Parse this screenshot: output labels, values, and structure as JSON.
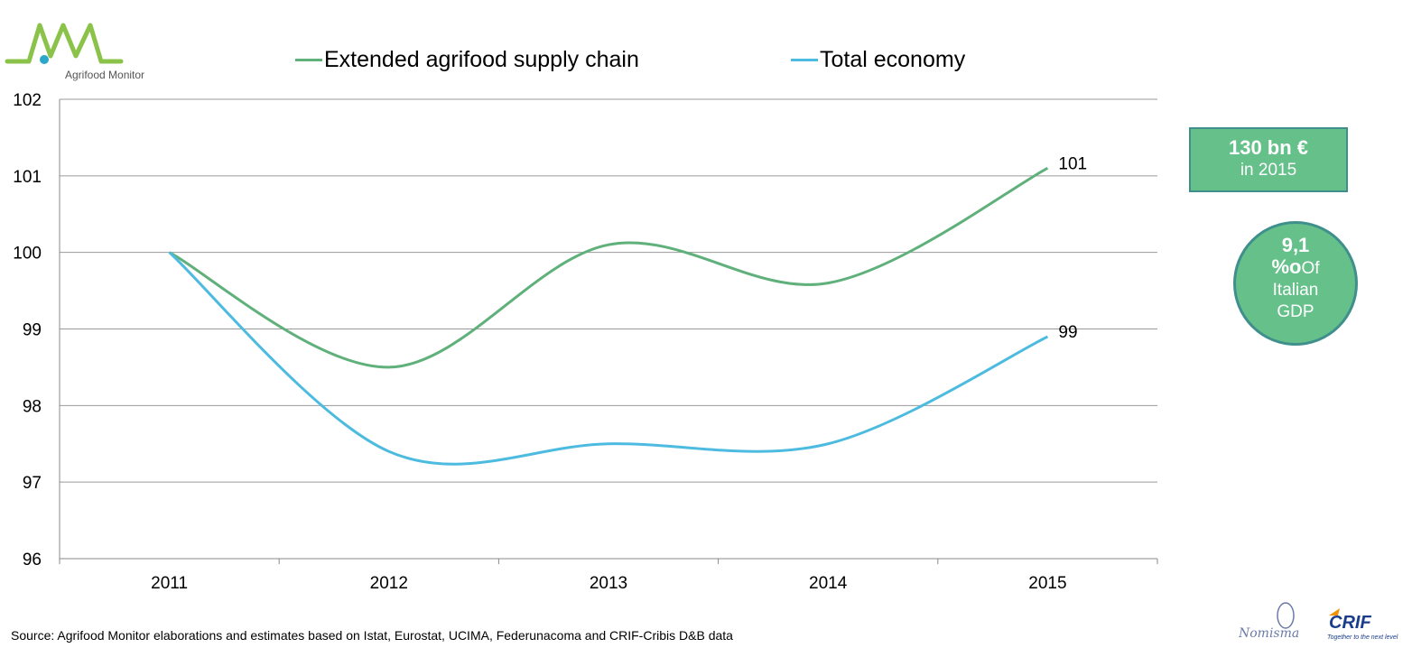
{
  "brand": {
    "name": "Agrifood Monitor"
  },
  "chart_data": {
    "type": "line",
    "categories": [
      "2011",
      "2012",
      "2013",
      "2014",
      "2015"
    ],
    "series": [
      {
        "name": "Extended agrifood supply chain",
        "values": [
          100,
          98.5,
          100.1,
          99.6,
          101.1
        ],
        "end_label": "101",
        "color": "#5fb07a"
      },
      {
        "name": "Total economy",
        "values": [
          100,
          97.4,
          97.5,
          97.5,
          98.9
        ],
        "end_label": "99",
        "color": "#4dbbe0"
      }
    ],
    "ylim": [
      96,
      102
    ],
    "yticks": [
      96,
      97,
      98,
      99,
      100,
      101,
      102
    ],
    "grid": true,
    "legend_position": "top"
  },
  "badge": {
    "main": "130 bn €",
    "sub": "in 2015"
  },
  "circle": {
    "big": "9,1",
    "pct": "%o",
    "of": "Of",
    "line3": "Italian",
    "line4": "GDP"
  },
  "source": "Source:  Agrifood Monitor elaborations and estimates based on Istat, Eurostat, UCIMA, Federunacoma and CRIF-Cribis D&B data",
  "partners": {
    "left": "Nomisma",
    "right": "CRIF",
    "right_tagline": "Together to the next level"
  },
  "colors": {
    "green": "#5fb07a",
    "blue": "#4dbbe0",
    "accent_fill": "#65c08a",
    "accent_border": "#3f8f8c"
  }
}
